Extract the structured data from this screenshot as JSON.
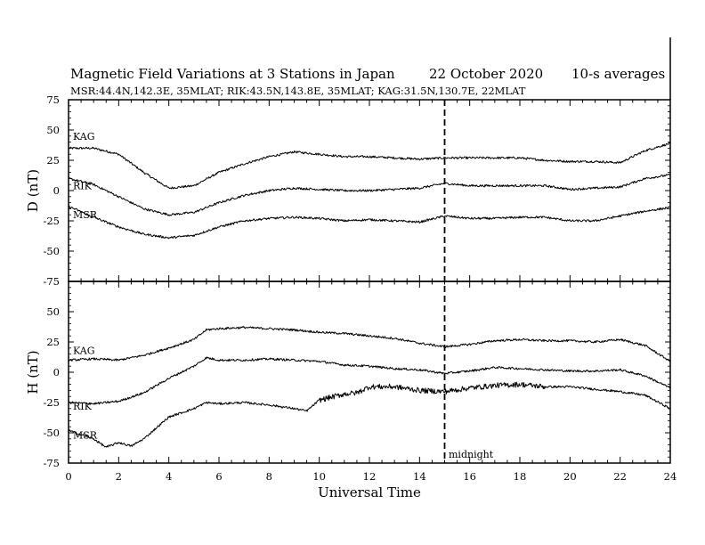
{
  "header": {
    "title_main": "Magnetic Field Variations at 3 Stations in Japan",
    "title_date": "22 October 2020",
    "title_avg": "10-s averages",
    "stations_line": "MSR:44.4N,142.3E, 35MLAT;  RIK:43.5N,143.8E, 35MLAT;  KAG:31.5N,130.7E, 22MLAT"
  },
  "annotation": {
    "midnight": "midnight"
  },
  "colors": {
    "ink": "#000000",
    "background": "#ffffff"
  },
  "chart_data": [
    {
      "type": "line",
      "panel": "D",
      "ylabel": "D (nT)",
      "ylim": [
        -75,
        75
      ],
      "yticks": [
        "75",
        "50",
        "25",
        "0",
        "-25",
        "-50",
        "-75"
      ],
      "xlim": [
        0,
        24
      ],
      "grid": false,
      "series": [
        {
          "name": "KAG",
          "x": [
            0,
            1,
            2,
            3,
            4,
            5,
            6,
            7,
            8,
            9,
            10,
            11,
            12,
            13,
            14,
            15,
            16,
            17,
            18,
            19,
            20,
            21,
            22,
            23,
            24
          ],
          "values": [
            35,
            35,
            30,
            15,
            2,
            4,
            15,
            22,
            28,
            32,
            30,
            28,
            28,
            27,
            26,
            27,
            27,
            27,
            27,
            25,
            24,
            24,
            23,
            33,
            39
          ]
        },
        {
          "name": "RIK",
          "x": [
            0,
            1,
            2,
            3,
            4,
            5,
            6,
            7,
            8,
            9,
            10,
            11,
            12,
            13,
            14,
            15,
            16,
            17,
            18,
            19,
            20,
            21,
            22,
            23,
            24
          ],
          "values": [
            10,
            5,
            -5,
            -15,
            -20,
            -18,
            -10,
            -4,
            0,
            2,
            1,
            0,
            0,
            1,
            2,
            6,
            4,
            4,
            4,
            4,
            1,
            2,
            3,
            10,
            13
          ]
        },
        {
          "name": "MSR",
          "x": [
            0,
            1,
            2,
            3,
            4,
            5,
            6,
            7,
            8,
            9,
            10,
            11,
            12,
            13,
            14,
            15,
            16,
            17,
            18,
            19,
            20,
            21,
            22,
            23,
            24
          ],
          "values": [
            -13,
            -22,
            -30,
            -36,
            -39,
            -37,
            -30,
            -25,
            -23,
            -22,
            -23,
            -25,
            -24,
            -25,
            -26,
            -21,
            -23,
            -23,
            -22,
            -22,
            -25,
            -25,
            -21,
            -17,
            -14
          ]
        }
      ]
    },
    {
      "type": "line",
      "panel": "H",
      "ylabel": "H (nT)",
      "ylim": [
        -75,
        75
      ],
      "yticks": [
        "75",
        "50",
        "25",
        "0",
        "-25",
        "-50",
        "-75"
      ],
      "xlim": [
        0,
        24
      ],
      "xlabel": "Universal Time",
      "xticks": [
        "0",
        "2",
        "4",
        "6",
        "8",
        "10",
        "12",
        "14",
        "16",
        "18",
        "20",
        "22",
        "24"
      ],
      "grid": false,
      "series": [
        {
          "name": "KAG",
          "x": [
            0,
            1,
            2,
            3,
            4,
            5,
            5.5,
            6,
            7,
            8,
            9,
            10,
            11,
            12,
            13,
            14,
            15,
            16,
            17,
            18,
            19,
            20,
            21,
            22,
            23,
            24
          ],
          "values": [
            10,
            11,
            10,
            14,
            20,
            27,
            35,
            36,
            37,
            36,
            35,
            33,
            32,
            30,
            28,
            24,
            21,
            23,
            26,
            27,
            26,
            26,
            25,
            27,
            22,
            9
          ]
        },
        {
          "name": "RIK",
          "x": [
            0,
            1,
            2,
            3,
            4,
            5,
            5.5,
            6,
            7,
            8,
            9,
            10,
            11,
            12,
            13,
            14,
            15,
            16,
            17,
            18,
            19,
            20,
            21,
            22,
            23,
            24
          ],
          "values": [
            -25,
            -26,
            -24,
            -17,
            -5,
            5,
            12,
            10,
            10,
            11,
            10,
            9,
            6,
            5,
            3,
            2,
            -1,
            1,
            4,
            3,
            2,
            1,
            1,
            2,
            -3,
            -13
          ]
        },
        {
          "name": "MSR",
          "x": [
            0,
            1,
            1.5,
            2,
            2.5,
            3,
            4,
            5,
            5.5,
            6,
            7,
            8,
            9,
            9.5,
            10,
            11,
            11.5,
            12,
            13,
            14,
            15,
            16,
            17,
            18,
            19,
            20,
            21,
            22,
            23,
            24
          ],
          "values": [
            -48,
            -55,
            -62,
            -58,
            -61,
            -55,
            -37,
            -30,
            -25,
            -26,
            -25,
            -27,
            -30,
            -32,
            -23,
            -18,
            -17,
            -12,
            -12,
            -15,
            -16,
            -13,
            -11,
            -10,
            -12,
            -12,
            -14,
            -16,
            -19,
            -30
          ]
        }
      ]
    }
  ]
}
